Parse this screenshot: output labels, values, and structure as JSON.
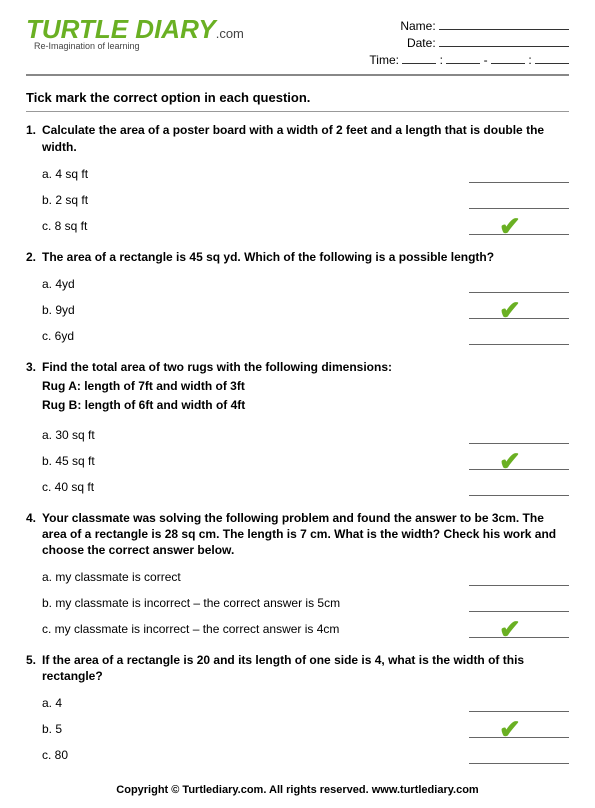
{
  "logo": {
    "text": "TURTLE DIARY",
    "suffix": ".com",
    "tagline": "Re-Imagination of learning"
  },
  "info": {
    "name_label": "Name:",
    "date_label": "Date:",
    "time_label": "Time:"
  },
  "instruction": "Tick mark the correct option in each question.",
  "questions": [
    {
      "num": "1.",
      "text": "Calculate the area of a poster board with a width of 2 feet and a length that is double the width.",
      "options": [
        {
          "label": "a. 4 sq ft",
          "correct": false
        },
        {
          "label": "b. 2 sq ft",
          "correct": false
        },
        {
          "label": "c. 8 sq ft",
          "correct": true
        }
      ]
    },
    {
      "num": "2.",
      "text": " The area of a rectangle is 45 sq yd. Which of the following is a possible length?",
      "options": [
        {
          "label": "a. 4yd",
          "correct": false
        },
        {
          "label": "b. 9yd",
          "correct": true
        },
        {
          "label": "c. 6yd",
          "correct": false
        }
      ]
    },
    {
      "num": "3.",
      "text": "Find the total area of two rugs with the following dimensions:",
      "extra": [
        "Rug A: length of 7ft and width of 3ft",
        "Rug B: length of 6ft and width of 4ft"
      ],
      "options": [
        {
          "label": "a. 30 sq ft",
          "correct": false
        },
        {
          "label": "b. 45 sq ft",
          "correct": true
        },
        {
          "label": "c. 40 sq ft",
          "correct": false
        }
      ]
    },
    {
      "num": "4.",
      "text": "Your classmate was solving the following problem and found the answer to be 3cm. The area of a rectangle is 28 sq cm. The length is 7 cm. What is the width? Check his work and choose the correct answer below.",
      "options": [
        {
          "label": "a. my classmate is correct",
          "correct": false
        },
        {
          "label": "b. my classmate is incorrect – the correct answer is 5cm",
          "correct": false
        },
        {
          "label": "c. my classmate is incorrect – the correct answer is 4cm",
          "correct": true
        }
      ]
    },
    {
      "num": "5.",
      "text": "If the area of a rectangle is 20 and its length of one side is 4, what is the width of this rectangle?",
      "options": [
        {
          "label": "a. 4",
          "correct": false
        },
        {
          "label": "b. 5",
          "correct": true
        },
        {
          "label": "c. 80",
          "correct": false
        }
      ]
    }
  ],
  "footer": "Copyright © Turtlediary.com. All rights reserved.   www.turtlediary.com",
  "colors": {
    "accent": "#6ab023"
  }
}
